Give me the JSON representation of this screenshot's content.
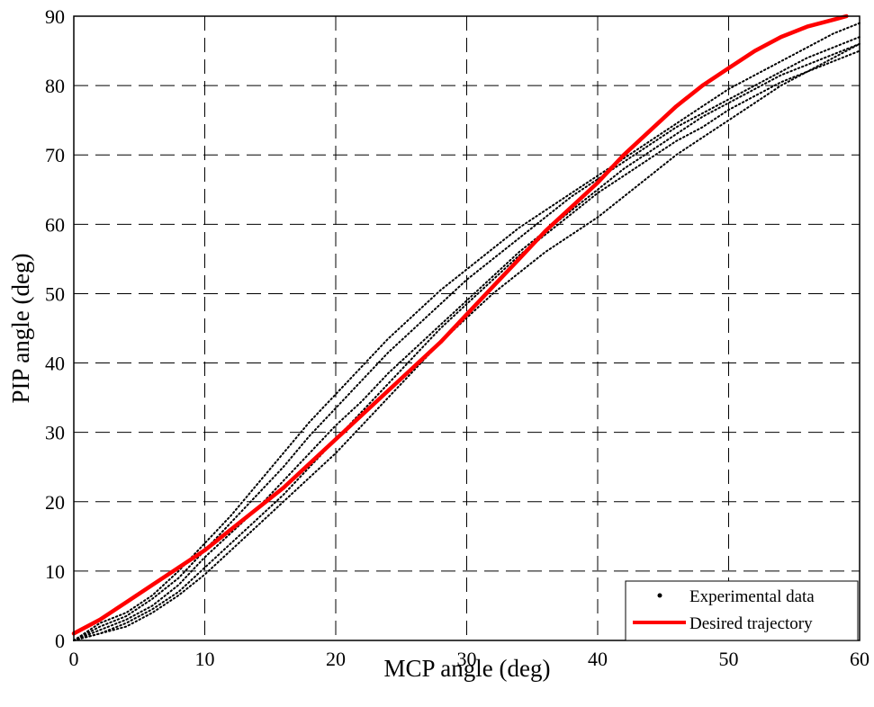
{
  "chart_data": {
    "type": "line",
    "title": "",
    "xlabel": "MCP angle (deg)",
    "ylabel": "PIP angle (deg)",
    "xlim": [
      0,
      60
    ],
    "ylim": [
      0,
      90
    ],
    "xticks": [
      "0",
      "10",
      "20",
      "30",
      "40",
      "50",
      "60"
    ],
    "yticks": [
      "0",
      "10",
      "20",
      "30",
      "40",
      "50",
      "60",
      "70",
      "80",
      "90"
    ],
    "grid": true,
    "grid_style": "dashed",
    "legend_position": "bottom-right",
    "series": [
      {
        "name": "Experimental data",
        "style": "dotted",
        "color": "#000000",
        "traces": [
          {
            "x": [
              0,
              2,
              4,
              6,
              8,
              10,
              12,
              14,
              16,
              18,
              20,
              22,
              24,
              26,
              28,
              30,
              32,
              34,
              36,
              38,
              40,
              42,
              44,
              46,
              48,
              50,
              52,
              54,
              56,
              58,
              60
            ],
            "y": [
              0,
              1.5,
              3,
              5,
              8,
              12,
              15.5,
              19,
              23,
              27,
              31,
              34.5,
              38.5,
              42,
              45.5,
              49,
              52.5,
              56,
              59,
              62,
              65,
              68,
              70.5,
              73,
              75.5,
              77.5,
              79.5,
              81.5,
              83,
              84.5,
              86
            ]
          },
          {
            "x": [
              0,
              2,
              4,
              6,
              8,
              10,
              12,
              14,
              16,
              18,
              20,
              22,
              24,
              26,
              28,
              30,
              32,
              34,
              36,
              38,
              40,
              42,
              44,
              46,
              48,
              50,
              52,
              54,
              56,
              58,
              60
            ],
            "y": [
              0,
              1,
              2.5,
              4.5,
              7,
              10.5,
              14,
              17.5,
              21,
              25,
              29,
              33,
              37,
              41,
              45,
              48.5,
              52,
              55.5,
              58.5,
              61.5,
              64.5,
              67,
              69.5,
              72,
              74,
              76.5,
              78.5,
              80.5,
              82,
              83.5,
              85
            ]
          },
          {
            "x": [
              0,
              2,
              4,
              6,
              8,
              10,
              12,
              14,
              16,
              18,
              20,
              22,
              24,
              26,
              28,
              30,
              32,
              34,
              36,
              38,
              40,
              42,
              44,
              46,
              48,
              50,
              52,
              54,
              56,
              58,
              60
            ],
            "y": [
              0,
              2,
              3.5,
              6,
              9,
              13,
              17,
              21,
              25,
              29.5,
              33.5,
              37.5,
              41.5,
              45,
              48.5,
              52,
              55,
              58,
              61,
              64,
              66.5,
              69,
              71.5,
              74,
              76,
              78,
              80,
              82,
              84,
              85.5,
              87
            ]
          },
          {
            "x": [
              0,
              2,
              4,
              6,
              8,
              10,
              12,
              14,
              16,
              18,
              20,
              22,
              24,
              26,
              28,
              30,
              32,
              34,
              36,
              38,
              40,
              42,
              44,
              46,
              48,
              50,
              52,
              54,
              56,
              58,
              60
            ],
            "y": [
              0,
              1,
              2,
              4,
              6.5,
              9.5,
              13,
              16.5,
              20,
              23.5,
              27,
              31,
              35,
              39,
              43,
              46.5,
              50,
              53,
              56,
              58.5,
              61,
              64,
              67,
              70,
              72.5,
              75,
              77.5,
              80,
              82,
              84,
              86
            ]
          },
          {
            "x": [
              0,
              2,
              4,
              6,
              8,
              10,
              12,
              14,
              16,
              18,
              20,
              22,
              24,
              26,
              28,
              30,
              32,
              34,
              36,
              38,
              40,
              42,
              44,
              46,
              48,
              50,
              52,
              54,
              56,
              58,
              60
            ],
            "y": [
              0,
              2.5,
              4,
              6.5,
              10,
              14,
              18,
              22.5,
              27,
              31.5,
              35.5,
              39.5,
              43.5,
              47,
              50.5,
              53.5,
              56.5,
              59.5,
              62,
              64.5,
              67,
              69.5,
              72,
              74.5,
              77,
              79.5,
              81.5,
              83.5,
              85.5,
              87.5,
              89
            ]
          }
        ]
      },
      {
        "name": "Desired trajectory",
        "style": "solid",
        "color": "#ff0000",
        "x": [
          0,
          2,
          4,
          6,
          8,
          10,
          12,
          14,
          16,
          18,
          20,
          22,
          24,
          26,
          28,
          30,
          32,
          34,
          36,
          38,
          40,
          42,
          44,
          46,
          48,
          50,
          52,
          54,
          56,
          58,
          59
        ],
        "y": [
          1,
          3,
          5.5,
          8,
          10.5,
          13,
          16,
          19,
          22,
          25.5,
          29,
          32.5,
          36,
          39.5,
          43,
          47,
          51,
          55,
          59,
          62.5,
          66,
          70,
          73.5,
          77,
          80,
          82.5,
          85,
          87,
          88.5,
          89.5,
          90
        ]
      }
    ]
  }
}
